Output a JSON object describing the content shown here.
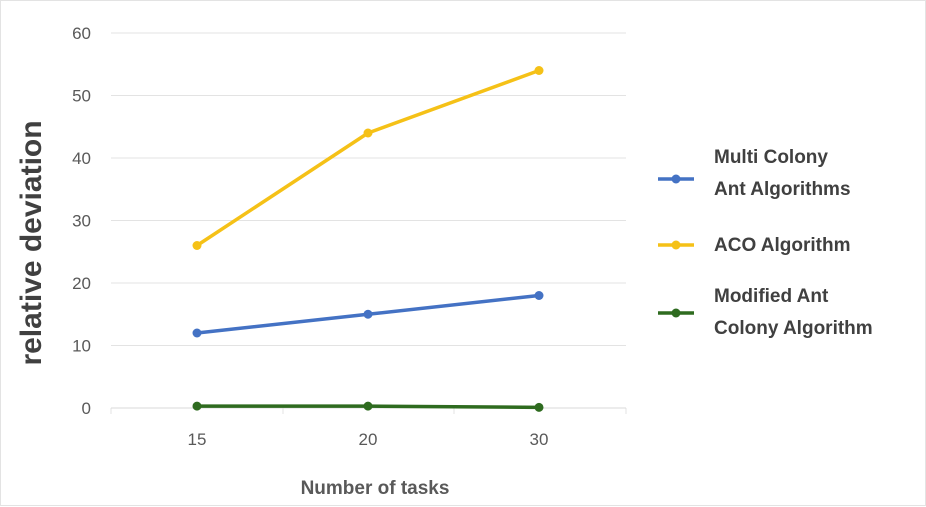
{
  "chart_data": {
    "type": "line",
    "title": "",
    "xlabel": "Number of tasks",
    "ylabel": "relative deviation",
    "categories": [
      "15",
      "20",
      "30"
    ],
    "ylim": [
      0,
      60
    ],
    "yticks": [
      "0",
      "10",
      "20",
      "30",
      "40",
      "50",
      "60"
    ],
    "grid": true,
    "legend_position": "right",
    "series": [
      {
        "name": "Multi Colony Ant Algorithms",
        "legend_lines": [
          "Multi Colony",
          "Ant Algorithms"
        ],
        "color": "#4472c4",
        "values": [
          12,
          15,
          18
        ]
      },
      {
        "name": "ACO Algorithm",
        "legend_lines": [
          "ACO Algorithm"
        ],
        "color": "#f5c117",
        "values": [
          26,
          44,
          54
        ]
      },
      {
        "name": "Modified Ant Colony Algorithm",
        "legend_lines": [
          "Modified Ant",
          "Colony Algorithm"
        ],
        "color": "#2e6b1f",
        "values": [
          0.3,
          0.3,
          0.1
        ]
      }
    ]
  }
}
